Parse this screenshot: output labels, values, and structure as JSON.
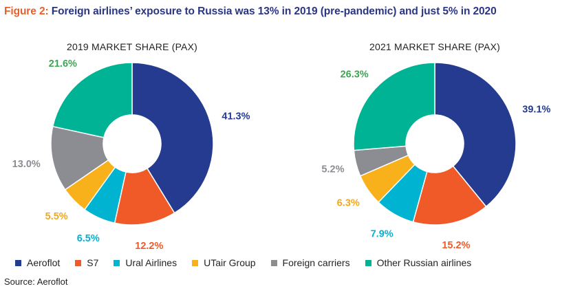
{
  "figure_title": {
    "prefix": "Figure 2:",
    "text": " Foreign airlines’ exposure to Russia was 13% in 2019 (pre-pandemic) and just 5% in 2020"
  },
  "colors": {
    "Aeroflot": "#253b8f",
    "S7": "#ef5a28",
    "Ural Airlines": "#00b3d1",
    "UTair Group": "#f8b01b",
    "Foreign carriers": "#8b8d93",
    "Other Russian airlines": "#00b394"
  },
  "label_colors": {
    "Aeroflot": "#253b8f",
    "S7": "#ef5a28",
    "Ural Airlines": "#00b3d1",
    "UTair Group": "#f2a81d",
    "Foreign carriers": "#8b8d93",
    "Other Russian airlines": "#3aa652"
  },
  "chart_data": [
    {
      "type": "pie",
      "donut": true,
      "title": "2019 MARKET SHARE (PAX)",
      "slices": [
        {
          "name": "Aeroflot",
          "value": 41.3,
          "label": "41.3%"
        },
        {
          "name": "S7",
          "value": 12.2,
          "label": "12.2%"
        },
        {
          "name": "Ural Airlines",
          "value": 6.5,
          "label": "6.5%"
        },
        {
          "name": "UTair Group",
          "value": 5.5,
          "label": "5.5%"
        },
        {
          "name": "Foreign carriers",
          "value": 13.0,
          "label": "13.0%"
        },
        {
          "name": "Other Russian airlines",
          "value": 21.6,
          "label": "21.6%"
        }
      ]
    },
    {
      "type": "pie",
      "donut": true,
      "title": "2021 MARKET SHARE (PAX)",
      "slices": [
        {
          "name": "Aeroflot",
          "value": 39.1,
          "label": "39.1%"
        },
        {
          "name": "S7",
          "value": 15.2,
          "label": "15.2%"
        },
        {
          "name": "Ural Airlines",
          "value": 7.9,
          "label": "7.9%"
        },
        {
          "name": "UTair Group",
          "value": 6.3,
          "label": "6.3%"
        },
        {
          "name": "Foreign carriers",
          "value": 5.2,
          "label": "5.2%"
        },
        {
          "name": "Other Russian airlines",
          "value": 26.3,
          "label": "26.3%"
        }
      ]
    }
  ],
  "legend": {
    "placement": "bottom",
    "items": [
      "Aeroflot",
      "S7",
      "Ural Airlines",
      "UTair Group",
      "Foreign carriers",
      "Other Russian airlines"
    ]
  },
  "source": "Source: Aeroflot"
}
